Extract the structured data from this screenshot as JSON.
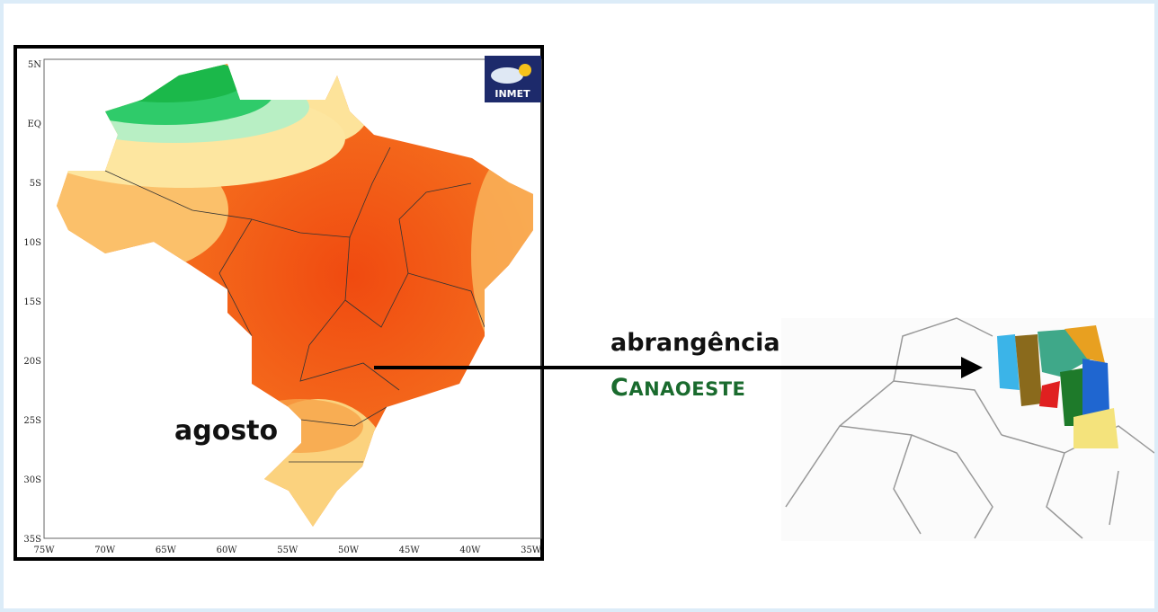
{
  "map": {
    "lat_labels": [
      "5N",
      "EQ",
      "5S",
      "10S",
      "15S",
      "20S",
      "25S",
      "30S",
      "35S"
    ],
    "lon_labels": [
      "75W",
      "70W",
      "65W",
      "60W",
      "55W",
      "50W",
      "45W",
      "40W",
      "35W"
    ],
    "logo": "INMET",
    "month": "agosto"
  },
  "annotation": {
    "line1": "abrangência",
    "line2": "CANAOESTE"
  }
}
